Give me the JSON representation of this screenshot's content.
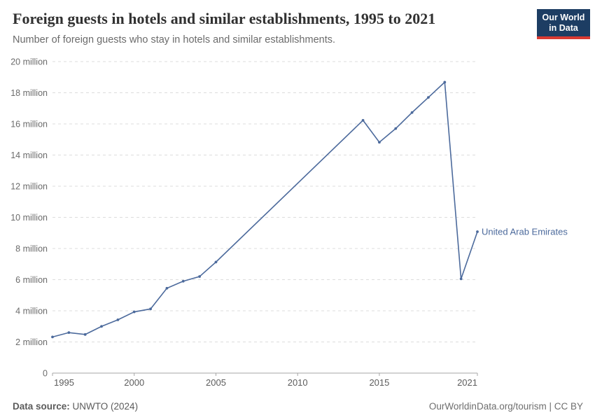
{
  "logo": {
    "line1": "Our World",
    "line2": "in Data",
    "bg_color": "#1d3d63",
    "accent_color": "#d93a32"
  },
  "chart_data": {
    "type": "line",
    "title": "Foreign guests in hotels and similar establishments, 1995 to 2021",
    "subtitle": "Number of foreign guests who stay in hotels and similar establishments.",
    "entity": "United Arab Emirates",
    "unit": "million",
    "line_color": "#4c6a9c",
    "grid": "horizontal dashed",
    "legend_position": "label at end of line",
    "x": [
      1995,
      1996,
      1997,
      1998,
      1999,
      2000,
      2001,
      2002,
      2003,
      2004,
      2005,
      2014,
      2015,
      2016,
      2017,
      2018,
      2019,
      2020,
      2021
    ],
    "values": [
      2.32,
      2.6,
      2.48,
      3.0,
      3.42,
      3.93,
      4.12,
      5.45,
      5.9,
      6.2,
      7.13,
      16.23,
      14.82,
      15.7,
      16.73,
      17.7,
      18.68,
      6.05,
      9.08
    ],
    "xlim": [
      1995,
      2021
    ],
    "ylim": [
      0,
      20
    ],
    "xticks": [
      {
        "value": 1995,
        "label": "1995"
      },
      {
        "value": 2000,
        "label": "2000"
      },
      {
        "value": 2005,
        "label": "2005"
      },
      {
        "value": 2010,
        "label": "2010"
      },
      {
        "value": 2015,
        "label": "2015"
      },
      {
        "value": 2021,
        "label": "2021"
      }
    ],
    "yticks": [
      {
        "value": 0,
        "label": "0"
      },
      {
        "value": 2,
        "label": "2 million"
      },
      {
        "value": 4,
        "label": "4 million"
      },
      {
        "value": 6,
        "label": "6 million"
      },
      {
        "value": 8,
        "label": "8 million"
      },
      {
        "value": 10,
        "label": "10 million"
      },
      {
        "value": 12,
        "label": "12 million"
      },
      {
        "value": 14,
        "label": "14 million"
      },
      {
        "value": 16,
        "label": "16 million"
      },
      {
        "value": 18,
        "label": "18 million"
      },
      {
        "value": 20,
        "label": "20 million"
      }
    ]
  },
  "footer": {
    "source_label": "Data source:",
    "source_value": "UNWTO (2024)",
    "right_text": "OurWorldinData.org/tourism | CC BY"
  }
}
